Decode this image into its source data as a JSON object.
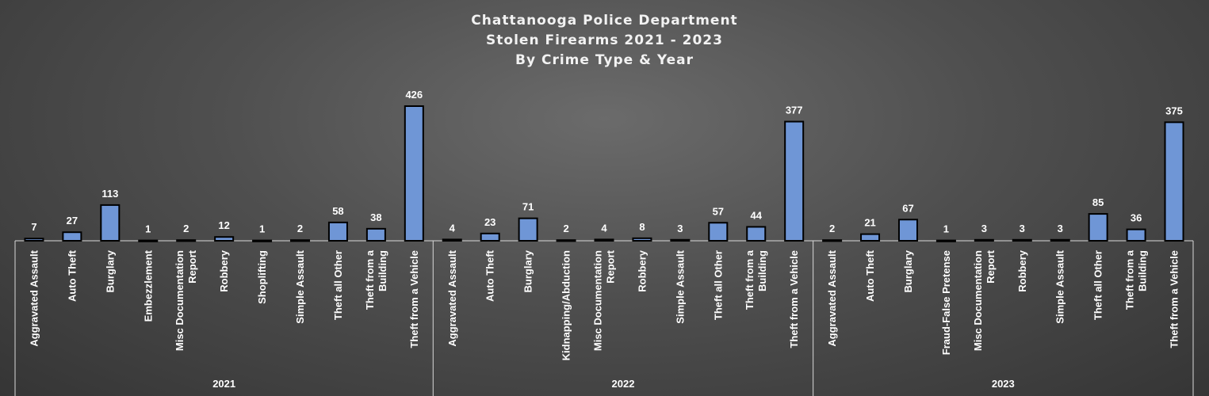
{
  "chart_data": {
    "type": "bar",
    "title": [
      "Chattanooga Police Department",
      "Stolen Firearms 2021 - 2023",
      "By Crime Type & Year"
    ],
    "xlabel": "",
    "ylabel": "",
    "ylim": [
      0,
      426
    ],
    "grid": false,
    "legend": "none",
    "colors": {
      "bar_fill": "#6f96d6",
      "bar_stroke": "#000000",
      "axis": "#d9d9d9",
      "text": "#ffffff"
    },
    "groups": [
      {
        "name": "2021",
        "categories": [
          "Aggravated Assault",
          "Auto Theft",
          "Burglary",
          "Embezzlement",
          "Misc Documentation Report",
          "Robbery",
          "Shoplifting",
          "Simple Assault",
          "Theft all Other",
          "Theft from a Building",
          "Theft from a Vehicle"
        ],
        "values": [
          7,
          27,
          113,
          1,
          2,
          12,
          1,
          2,
          58,
          38,
          426
        ]
      },
      {
        "name": "2022",
        "categories": [
          "Aggravated Assault",
          "Auto Theft",
          "Burglary",
          "Kidnapping/Abduction",
          "Misc Documentation Report",
          "Robbery",
          "Simple Assault",
          "Theft all Other",
          "Theft from a Building",
          "Theft from a Vehicle"
        ],
        "values": [
          4,
          23,
          71,
          2,
          4,
          8,
          3,
          57,
          44,
          377
        ]
      },
      {
        "name": "2023",
        "categories": [
          "Aggravated Assault",
          "Auto Theft",
          "Burglary",
          "Fraud-False Pretense",
          "Misc Documentation Report",
          "Robbery",
          "Simple Assault",
          "Theft all Other",
          "Theft from a Building",
          "Theft from a Vehicle"
        ],
        "values": [
          2,
          21,
          67,
          1,
          3,
          3,
          3,
          85,
          36,
          375
        ]
      }
    ]
  }
}
